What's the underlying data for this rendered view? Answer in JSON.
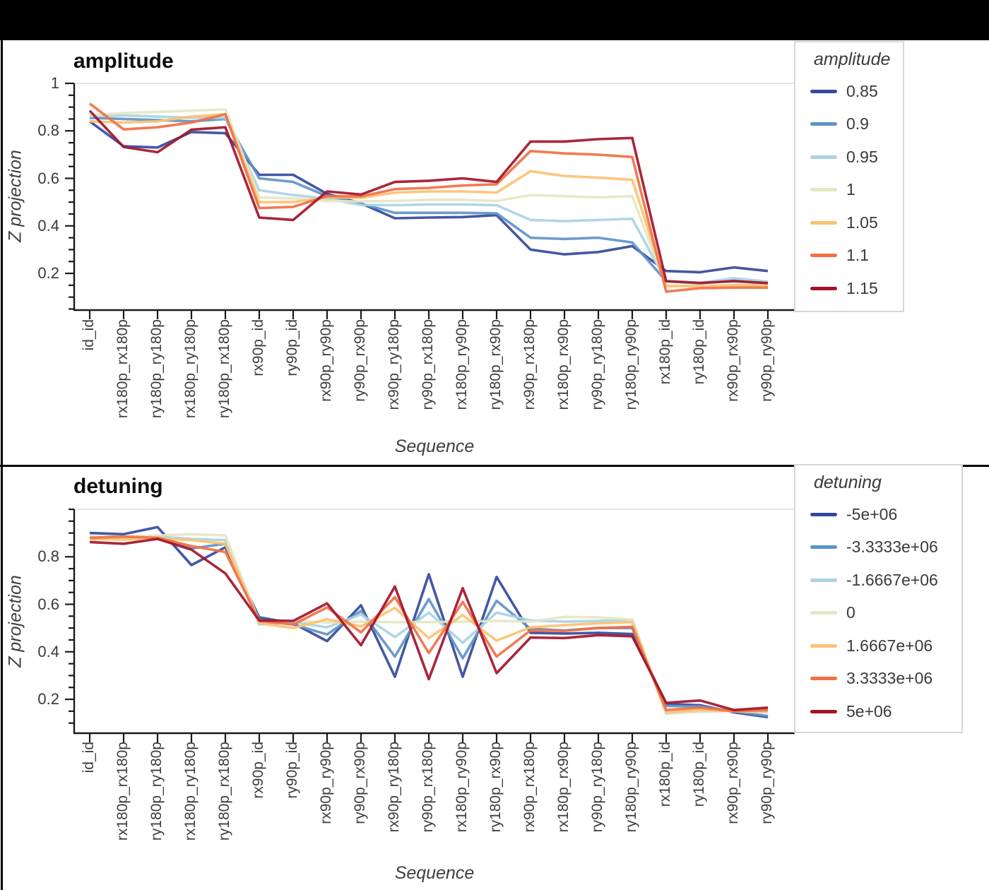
{
  "page": {
    "background_color": "#000000",
    "panel_color": "#ffffff",
    "axis_color": "#1a1a1a",
    "grid_color": "#e6e6e6",
    "tick_text_color": "#3a3a3a"
  },
  "chart_data": [
    {
      "type": "line",
      "title": "amplitude",
      "xlabel": "Sequence",
      "ylabel": "Z projection",
      "legend_title": "amplitude",
      "legend_position": "outside-top-right",
      "grid": "top-line-only",
      "ylim": [
        0.045,
        1.0
      ],
      "y_major_ticks": [
        0.2,
        0.4,
        0.6,
        0.8,
        1.0
      ],
      "y_tick_labels": [
        "0.2",
        "0.4",
        "0.6",
        "0.8",
        "1"
      ],
      "y_minor_tick_step": 0.05,
      "categories": [
        "id_id",
        "rx180p_rx180p",
        "ry180p_ry180p",
        "rx180p_ry180p",
        "ry180p_rx180p",
        "rx90p_id",
        "ry90p_id",
        "rx90p_ry90p",
        "ry90p_rx90p",
        "rx90p_ry180p",
        "ry90p_rx180p",
        "rx180p_ry90p",
        "ry180p_rx90p",
        "rx90p_rx180p",
        "rx180p_rx90p",
        "ry90p_ry180p",
        "ry180p_ry90p",
        "rx180p_id",
        "ry180p_id",
        "rx90p_rx90p",
        "ry90p_ry90p"
      ],
      "series": [
        {
          "name": "0.85",
          "color": "#33499c",
          "values": [
            0.84,
            0.735,
            0.73,
            0.795,
            0.79,
            0.615,
            0.615,
            0.535,
            0.495,
            0.432,
            0.435,
            0.437,
            0.445,
            0.3,
            0.28,
            0.29,
            0.315,
            0.21,
            0.205,
            0.225,
            0.21
          ]
        },
        {
          "name": "0.9",
          "color": "#5f93c5",
          "values": [
            0.855,
            0.85,
            0.845,
            0.84,
            0.85,
            0.6,
            0.585,
            0.525,
            0.494,
            0.455,
            0.455,
            0.455,
            0.453,
            0.35,
            0.345,
            0.35,
            0.33,
            0.167,
            0.158,
            0.17,
            0.16
          ]
        },
        {
          "name": "0.95",
          "color": "#a9d2e4",
          "values": [
            0.862,
            0.865,
            0.86,
            0.855,
            0.855,
            0.55,
            0.53,
            0.515,
            0.488,
            0.487,
            0.49,
            0.49,
            0.487,
            0.425,
            0.42,
            0.425,
            0.43,
            0.167,
            0.16,
            0.18,
            0.165
          ]
        },
        {
          "name": "1",
          "color": "#e4e6c3",
          "values": [
            0.865,
            0.875,
            0.88,
            0.885,
            0.89,
            0.52,
            0.515,
            0.505,
            0.503,
            0.505,
            0.51,
            0.51,
            0.505,
            0.53,
            0.525,
            0.52,
            0.525,
            0.147,
            0.146,
            0.152,
            0.152
          ]
        },
        {
          "name": "1.05",
          "color": "#fdc171",
          "values": [
            0.84,
            0.835,
            0.84,
            0.86,
            0.87,
            0.5,
            0.5,
            0.52,
            0.518,
            0.54,
            0.545,
            0.545,
            0.54,
            0.63,
            0.61,
            0.603,
            0.594,
            0.147,
            0.147,
            0.15,
            0.15
          ]
        },
        {
          "name": "1.1",
          "color": "#f07044",
          "values": [
            0.915,
            0.806,
            0.815,
            0.835,
            0.87,
            0.475,
            0.48,
            0.525,
            0.524,
            0.555,
            0.56,
            0.57,
            0.575,
            0.715,
            0.705,
            0.7,
            0.69,
            0.123,
            0.138,
            0.14,
            0.14
          ]
        },
        {
          "name": "1.15",
          "color": "#a31329",
          "values": [
            0.885,
            0.732,
            0.71,
            0.805,
            0.815,
            0.435,
            0.425,
            0.545,
            0.532,
            0.585,
            0.59,
            0.6,
            0.585,
            0.755,
            0.755,
            0.765,
            0.77,
            0.167,
            0.16,
            0.167,
            0.159
          ]
        }
      ]
    },
    {
      "type": "line",
      "title": "detuning",
      "xlabel": "Sequence",
      "ylabel": "Z projection",
      "legend_title": "detuning",
      "legend_position": "outside-top-right",
      "grid": "top-line-only",
      "ylim": [
        0.058,
        1.0
      ],
      "y_major_ticks": [
        0.2,
        0.4,
        0.6,
        0.8
      ],
      "y_tick_labels": [
        "0.2",
        "0.4",
        "0.6",
        "0.8"
      ],
      "y_minor_tick_step": 0.05,
      "categories": [
        "id_id",
        "rx180p_rx180p",
        "ry180p_ry180p",
        "rx180p_ry180p",
        "ry180p_rx180p",
        "rx90p_id",
        "ry90p_id",
        "rx90p_ry90p",
        "ry90p_rx90p",
        "rx90p_ry180p",
        "ry90p_rx180p",
        "rx180p_ry90p",
        "ry180p_rx90p",
        "rx90p_rx180p",
        "rx180p_rx90p",
        "ry90p_ry180p",
        "ry180p_ry90p",
        "rx180p_id",
        "ry180p_id",
        "rx90p_rx90p",
        "ry90p_ry90p"
      ],
      "series": [
        {
          "name": "-5e+06",
          "color": "#33499c",
          "values": [
            0.9,
            0.895,
            0.925,
            0.765,
            0.84,
            0.545,
            0.52,
            0.445,
            0.596,
            0.295,
            0.726,
            0.295,
            0.715,
            0.48,
            0.477,
            0.48,
            0.475,
            0.18,
            0.175,
            0.145,
            0.125
          ]
        },
        {
          "name": "-3.3333e+06",
          "color": "#5f93c5",
          "values": [
            0.885,
            0.883,
            0.885,
            0.835,
            0.855,
            0.535,
            0.515,
            0.473,
            0.572,
            0.38,
            0.622,
            0.373,
            0.615,
            0.497,
            0.49,
            0.5,
            0.5,
            0.172,
            0.17,
            0.15,
            0.13
          ]
        },
        {
          "name": "-1.6667e+06",
          "color": "#a9d2e4",
          "values": [
            0.88,
            0.878,
            0.885,
            0.875,
            0.87,
            0.515,
            0.525,
            0.503,
            0.557,
            0.462,
            0.565,
            0.438,
            0.565,
            0.532,
            0.527,
            0.53,
            0.535,
            0.14,
            0.15,
            0.155,
            0.145
          ]
        },
        {
          "name": "0",
          "color": "#e4e6c3",
          "values": [
            0.885,
            0.885,
            0.89,
            0.895,
            0.89,
            0.525,
            0.53,
            0.524,
            0.527,
            0.525,
            0.525,
            0.527,
            0.53,
            0.527,
            0.547,
            0.545,
            0.535,
            0.143,
            0.147,
            0.15,
            0.145
          ]
        },
        {
          "name": "1.6667e+06",
          "color": "#fdc171",
          "values": [
            0.875,
            0.872,
            0.878,
            0.87,
            0.855,
            0.52,
            0.5,
            0.537,
            0.507,
            0.585,
            0.458,
            0.555,
            0.447,
            0.503,
            0.512,
            0.52,
            0.525,
            0.145,
            0.155,
            0.15,
            0.15
          ]
        },
        {
          "name": "3.3333e+06",
          "color": "#f07044",
          "values": [
            0.88,
            0.885,
            0.88,
            0.845,
            0.82,
            0.53,
            0.515,
            0.587,
            0.482,
            0.63,
            0.395,
            0.61,
            0.38,
            0.49,
            0.488,
            0.5,
            0.505,
            0.155,
            0.165,
            0.15,
            0.155
          ]
        },
        {
          "name": "5e+06",
          "color": "#a31329",
          "values": [
            0.862,
            0.855,
            0.875,
            0.83,
            0.73,
            0.532,
            0.53,
            0.604,
            0.428,
            0.675,
            0.285,
            0.668,
            0.31,
            0.46,
            0.458,
            0.47,
            0.465,
            0.185,
            0.195,
            0.155,
            0.165
          ]
        }
      ]
    }
  ]
}
